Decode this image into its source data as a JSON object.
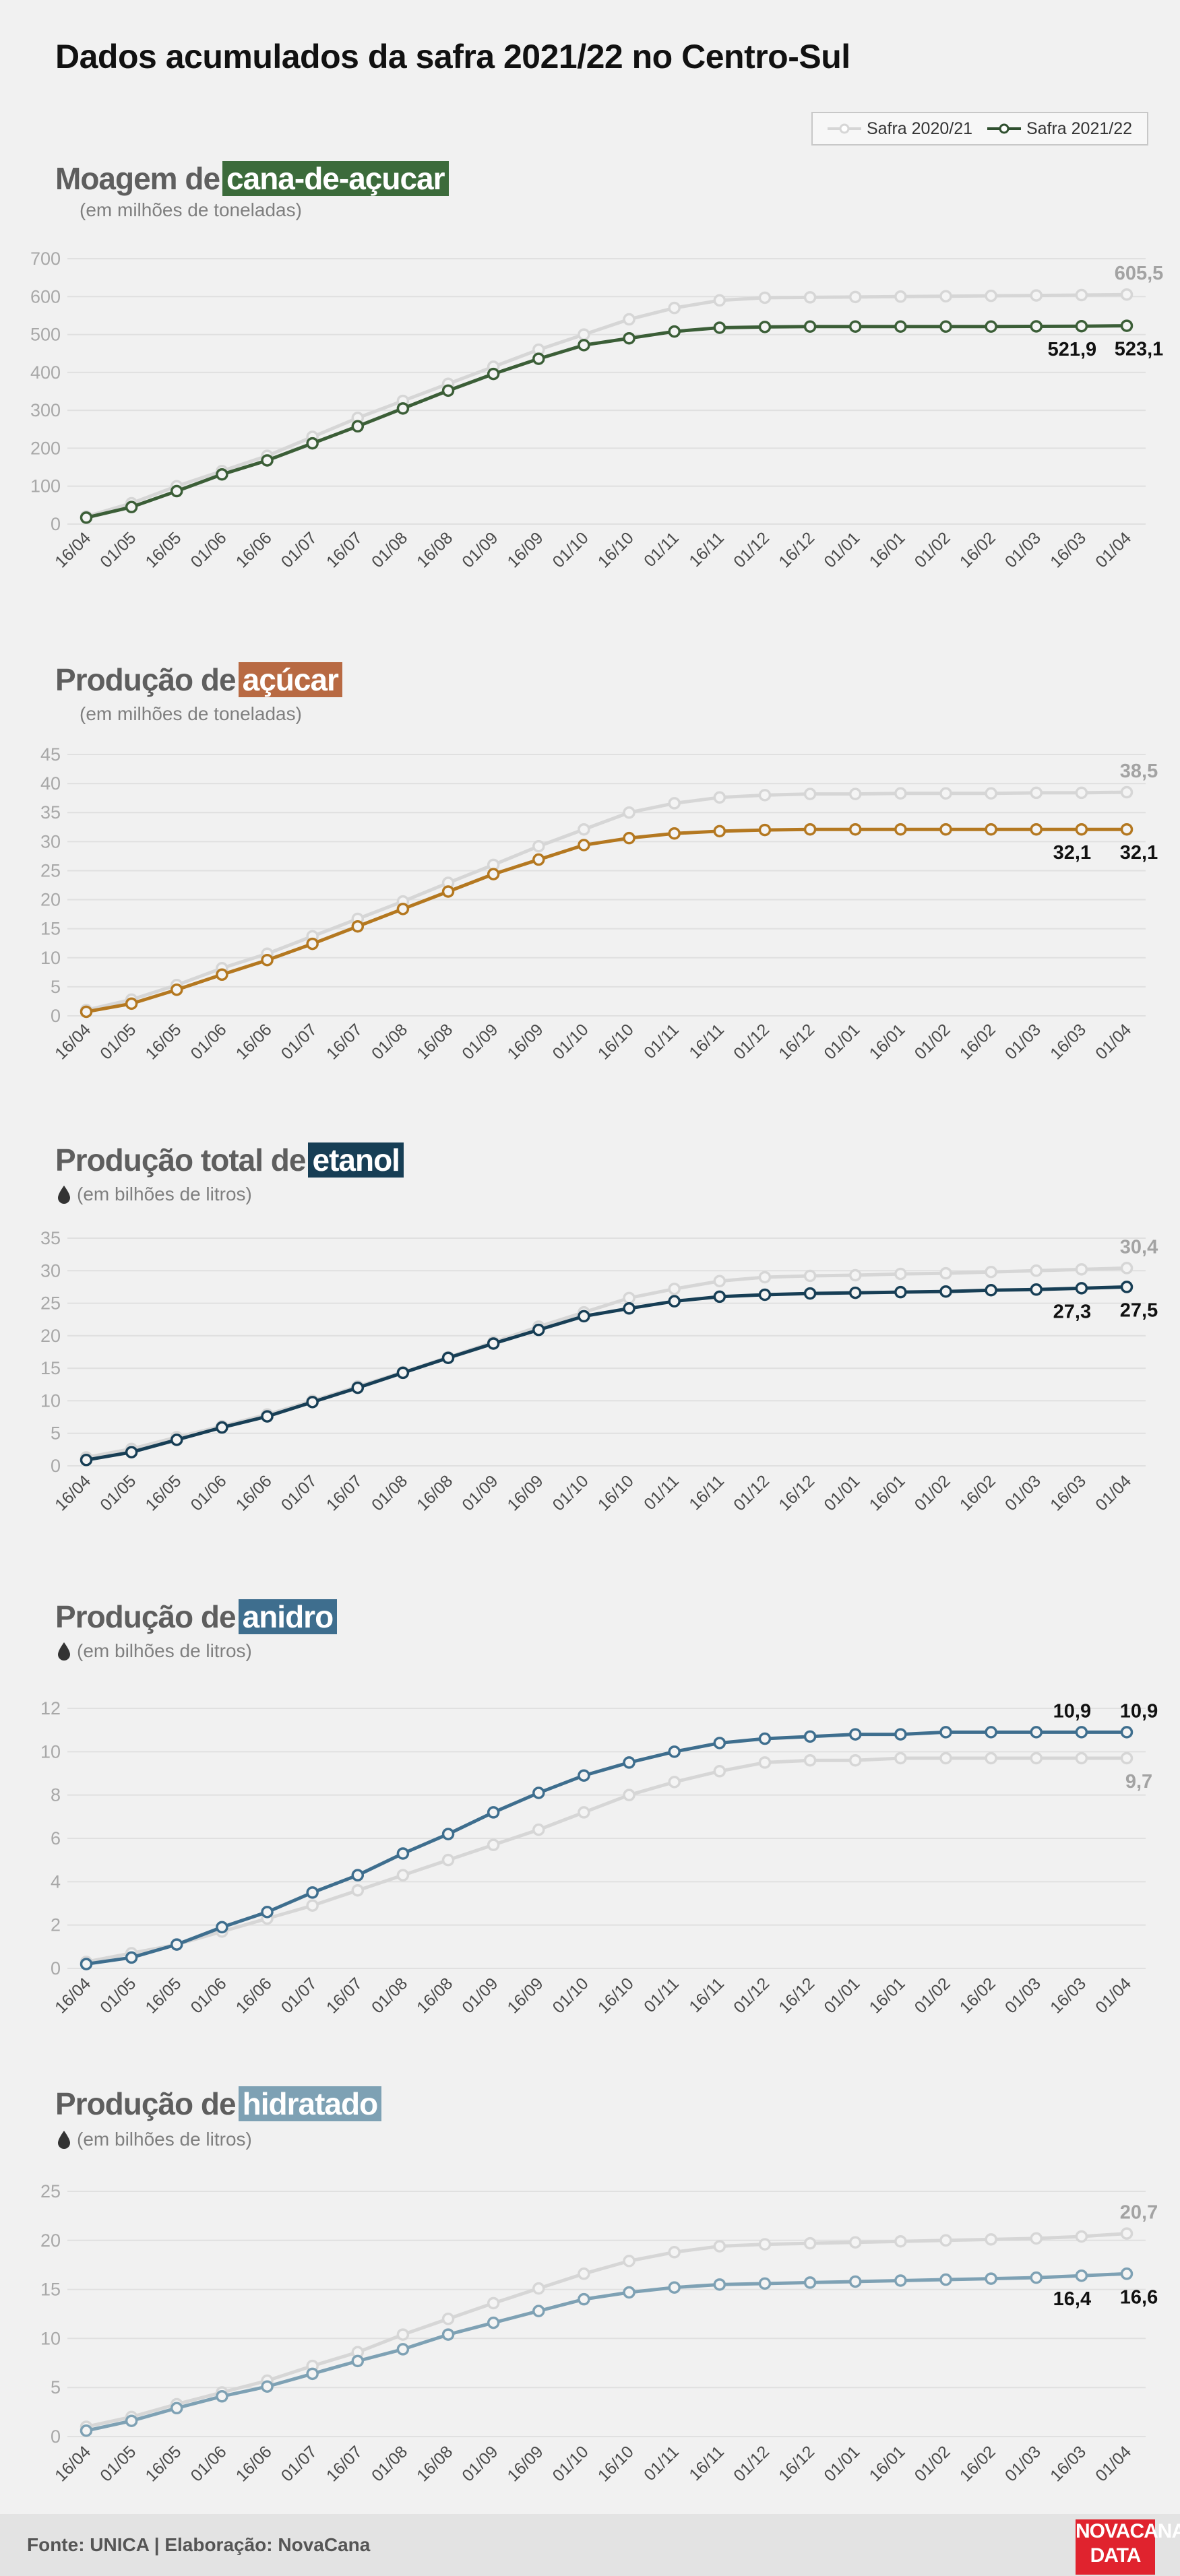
{
  "title": "Dados acumulados da safra 2021/22 no Centro-Sul",
  "legend": [
    {
      "label": "Safra 2020/21",
      "color": "#d6d6d6"
    },
    {
      "label": "Safra 2021/22",
      "color": "#2f4f2f"
    }
  ],
  "footer": {
    "source": "Fonte: UNICA | Elaboração: NovaCana",
    "logo_line1": "NOVACANA",
    "logo_line2": "DATA"
  },
  "charts": [
    {
      "title_prefix": "Moagem de",
      "title_highlight": "cana-de-açucar",
      "highlight_color": "#3c6b3b",
      "subtitle": "(em milhões de toneladas)",
      "has_drop": false
    },
    {
      "title_prefix": "Produção de",
      "title_highlight": "açúcar",
      "highlight_color": "#b86a43",
      "subtitle": "(em milhões de toneladas)",
      "has_drop": false
    },
    {
      "title_prefix": "Produção total de",
      "title_highlight": "etanol",
      "highlight_color": "#173e55",
      "subtitle": "(em bilhões de litros)",
      "has_drop": true
    },
    {
      "title_prefix": "Produção de",
      "title_highlight": "anidro",
      "highlight_color": "#3e6e8e",
      "subtitle": "(em bilhões de litros)",
      "has_drop": true
    },
    {
      "title_prefix": "Produção de",
      "title_highlight": "hidratado",
      "highlight_color": "#7ea1b4",
      "subtitle": "(em bilhões de litros)",
      "has_drop": true
    }
  ],
  "chart_data": [
    {
      "type": "line",
      "title": "Moagem de cana-de-açucar",
      "ylabel": "(em milhões de toneladas)",
      "categories": [
        "16/04",
        "01/05",
        "16/05",
        "01/06",
        "16/06",
        "01/07",
        "16/07",
        "01/08",
        "16/08",
        "01/09",
        "16/09",
        "01/10",
        "16/10",
        "01/11",
        "16/11",
        "01/12",
        "16/12",
        "01/01",
        "16/01",
        "01/02",
        "16/02",
        "01/03",
        "16/03",
        "01/04"
      ],
      "ylim": [
        0,
        700
      ],
      "yticks": [
        0,
        100,
        200,
        300,
        400,
        500,
        600,
        700
      ],
      "series": [
        {
          "name": "Safra 2020/21",
          "color": "#d6d6d6",
          "values": [
            20,
            55,
            100,
            140,
            180,
            230,
            280,
            325,
            370,
            415,
            460,
            500,
            540,
            570,
            590,
            597,
            598,
            599,
            600,
            601,
            602,
            603,
            604,
            605.5
          ]
        },
        {
          "name": "Safra 2021/22",
          "color": "#3b5e37",
          "values": [
            17,
            45,
            87,
            131,
            168,
            213,
            258,
            305,
            352,
            396,
            436,
            472,
            490,
            508,
            518,
            520,
            521,
            521,
            521,
            521,
            521,
            521.5,
            521.9,
            523.1
          ]
        }
      ],
      "value_labels": [
        {
          "series": 0,
          "index": 23,
          "text": "605,5"
        },
        {
          "series": 1,
          "index": 22,
          "text": "521,9"
        },
        {
          "series": 1,
          "index": 23,
          "text": "523,1"
        }
      ]
    },
    {
      "type": "line",
      "title": "Produção de açúcar",
      "ylabel": "(em milhões de toneladas)",
      "categories": [
        "16/04",
        "01/05",
        "16/05",
        "01/06",
        "16/06",
        "01/07",
        "16/07",
        "01/08",
        "16/08",
        "01/09",
        "16/09",
        "01/10",
        "16/10",
        "01/11",
        "16/11",
        "01/12",
        "16/12",
        "01/01",
        "16/01",
        "01/02",
        "16/02",
        "01/03",
        "16/03",
        "01/04"
      ],
      "ylim": [
        0,
        45
      ],
      "yticks": [
        0,
        5,
        10,
        15,
        20,
        25,
        30,
        35,
        40,
        45
      ],
      "series": [
        {
          "name": "Safra 2020/21",
          "color": "#d6d6d6",
          "values": [
            1,
            2.8,
            5.3,
            8.2,
            10.7,
            13.7,
            16.7,
            19.7,
            22.9,
            26,
            29.2,
            32.1,
            35,
            36.6,
            37.6,
            38.0,
            38.2,
            38.2,
            38.3,
            38.3,
            38.3,
            38.4,
            38.4,
            38.5
          ]
        },
        {
          "name": "Safra 2021/22",
          "color": "#b47820",
          "values": [
            0.7,
            2.1,
            4.5,
            7.1,
            9.6,
            12.4,
            15.4,
            18.4,
            21.4,
            24.4,
            26.9,
            29.4,
            30.6,
            31.4,
            31.8,
            32.0,
            32.1,
            32.1,
            32.1,
            32.1,
            32.1,
            32.1,
            32.1,
            32.1
          ]
        }
      ],
      "value_labels": [
        {
          "series": 0,
          "index": 23,
          "text": "38,5"
        },
        {
          "series": 1,
          "index": 22,
          "text": "32,1"
        },
        {
          "series": 1,
          "index": 23,
          "text": "32,1"
        }
      ]
    },
    {
      "type": "line",
      "title": "Produção total de etanol",
      "ylabel": "(em bilhões de litros)",
      "categories": [
        "16/04",
        "01/05",
        "16/05",
        "01/06",
        "16/06",
        "01/07",
        "16/07",
        "01/08",
        "16/08",
        "01/09",
        "16/09",
        "01/10",
        "16/10",
        "01/11",
        "16/11",
        "01/12",
        "16/12",
        "01/01",
        "16/01",
        "01/02",
        "16/02",
        "01/03",
        "16/03",
        "01/04"
      ],
      "ylim": [
        0,
        35
      ],
      "yticks": [
        0,
        5,
        10,
        15,
        20,
        25,
        30,
        35
      ],
      "series": [
        {
          "name": "Safra 2020/21",
          "color": "#d6d6d6",
          "values": [
            1.3,
            2.6,
            4.4,
            6.1,
            7.9,
            10.0,
            12.2,
            14.4,
            16.7,
            19.0,
            21.4,
            23.6,
            25.8,
            27.2,
            28.4,
            29.0,
            29.2,
            29.3,
            29.5,
            29.6,
            29.8,
            30.0,
            30.2,
            30.4
          ]
        },
        {
          "name": "Safra 2021/22",
          "color": "#173e55",
          "values": [
            0.9,
            2.1,
            4.0,
            5.9,
            7.6,
            9.8,
            12.0,
            14.3,
            16.6,
            18.8,
            20.9,
            23.0,
            24.2,
            25.3,
            26.0,
            26.3,
            26.5,
            26.6,
            26.7,
            26.8,
            27.0,
            27.1,
            27.3,
            27.5
          ]
        }
      ],
      "value_labels": [
        {
          "series": 0,
          "index": 23,
          "text": "30,4"
        },
        {
          "series": 1,
          "index": 22,
          "text": "27,3"
        },
        {
          "series": 1,
          "index": 23,
          "text": "27,5"
        }
      ]
    },
    {
      "type": "line",
      "title": "Produção de anidro",
      "ylabel": "(em bilhões de litros)",
      "categories": [
        "16/04",
        "01/05",
        "16/05",
        "01/06",
        "16/06",
        "01/07",
        "16/07",
        "01/08",
        "16/08",
        "01/09",
        "16/09",
        "01/10",
        "16/10",
        "01/11",
        "16/11",
        "01/12",
        "16/12",
        "01/01",
        "16/01",
        "01/02",
        "16/02",
        "01/03",
        "16/03",
        "01/04"
      ],
      "ylim": [
        0,
        12
      ],
      "yticks": [
        0,
        2,
        4,
        6,
        8,
        10,
        12
      ],
      "series": [
        {
          "name": "Safra 2020/21",
          "color": "#d6d6d6",
          "values": [
            0.3,
            0.7,
            1.1,
            1.7,
            2.3,
            2.9,
            3.6,
            4.3,
            5.0,
            5.7,
            6.4,
            7.2,
            8.0,
            8.6,
            9.1,
            9.5,
            9.6,
            9.6,
            9.7,
            9.7,
            9.7,
            9.7,
            9.7,
            9.7
          ]
        },
        {
          "name": "Safra 2021/22",
          "color": "#3e6e8e",
          "values": [
            0.2,
            0.5,
            1.1,
            1.9,
            2.6,
            3.5,
            4.3,
            5.3,
            6.2,
            7.2,
            8.1,
            8.9,
            9.5,
            10.0,
            10.4,
            10.6,
            10.7,
            10.8,
            10.8,
            10.9,
            10.9,
            10.9,
            10.9,
            10.9
          ]
        }
      ],
      "value_labels": [
        {
          "series": 0,
          "index": 23,
          "text": "9,7"
        },
        {
          "series": 1,
          "index": 22,
          "text": "10,9"
        },
        {
          "series": 1,
          "index": 23,
          "text": "10,9"
        }
      ]
    },
    {
      "type": "line",
      "title": "Produção de hidratado",
      "ylabel": "(em bilhões de litros)",
      "categories": [
        "16/04",
        "01/05",
        "16/05",
        "01/06",
        "16/06",
        "01/07",
        "16/07",
        "01/08",
        "16/08",
        "01/09",
        "16/09",
        "01/10",
        "16/10",
        "01/11",
        "16/11",
        "01/12",
        "16/12",
        "01/01",
        "16/01",
        "01/02",
        "16/02",
        "01/03",
        "16/03",
        "01/04"
      ],
      "ylim": [
        0,
        25
      ],
      "yticks": [
        0,
        5,
        10,
        15,
        20,
        25
      ],
      "series": [
        {
          "name": "Safra 2020/21",
          "color": "#d6d6d6",
          "values": [
            1.0,
            2.0,
            3.3,
            4.5,
            5.7,
            7.2,
            8.6,
            10.4,
            12.0,
            13.6,
            15.1,
            16.6,
            17.9,
            18.8,
            19.4,
            19.6,
            19.7,
            19.8,
            19.9,
            20.0,
            20.1,
            20.2,
            20.4,
            20.7
          ]
        },
        {
          "name": "Safra 2021/22",
          "color": "#7ea1b4",
          "values": [
            0.6,
            1.6,
            2.9,
            4.1,
            5.1,
            6.4,
            7.7,
            8.9,
            10.4,
            11.6,
            12.8,
            14.0,
            14.7,
            15.2,
            15.5,
            15.6,
            15.7,
            15.8,
            15.9,
            16.0,
            16.1,
            16.2,
            16.4,
            16.6
          ]
        }
      ],
      "value_labels": [
        {
          "series": 0,
          "index": 23,
          "text": "20,7"
        },
        {
          "series": 1,
          "index": 22,
          "text": "16,4"
        },
        {
          "series": 1,
          "index": 23,
          "text": "16,6"
        }
      ]
    }
  ]
}
